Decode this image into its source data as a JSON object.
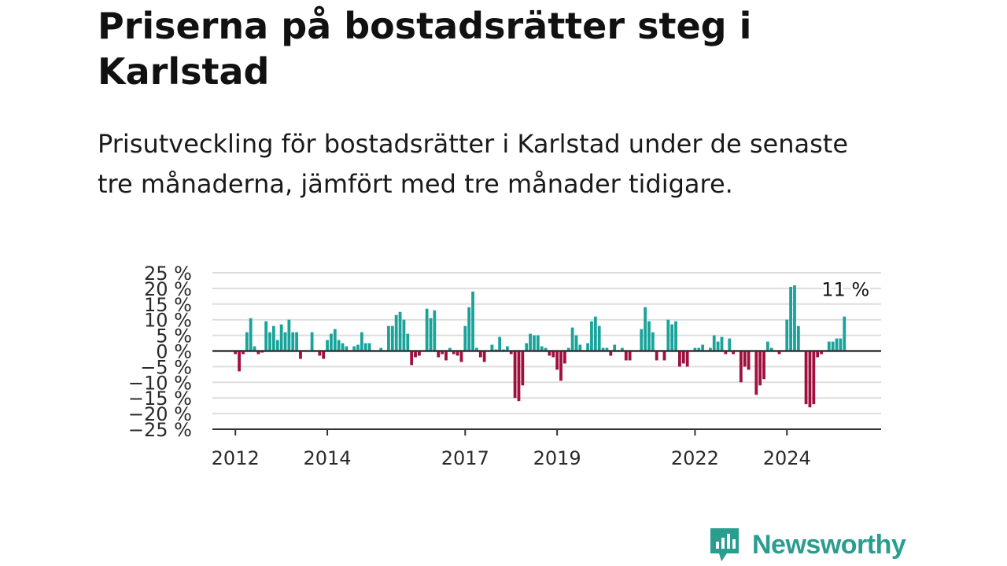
{
  "title": "Priserna på bostadsrätter steg i Karlstad",
  "subtitle": "Prisutveckling för bostadsrätter i Karlstad under de senaste tre månaderna, jämfört med tre månader tidigare.",
  "brand": {
    "name": "Newsworthy",
    "icon": "newsworthy-logo-icon"
  },
  "colors": {
    "positive": "#1aa39a",
    "negative": "#a0103f",
    "grid": "#dddddd",
    "axis": "#333333",
    "brand": "#2a9d8f"
  },
  "chart_data": {
    "type": "bar",
    "title": "",
    "xlabel": "",
    "ylabel": "",
    "ylim": [
      -25,
      25
    ],
    "yticks": [
      25,
      20,
      15,
      10,
      5,
      0,
      -5,
      -10,
      -15,
      -20,
      -25
    ],
    "ytick_labels": [
      "25 %",
      "20 %",
      "15 %",
      "10 %",
      "5 %",
      "0 %",
      "−5 %",
      "−10 %",
      "−15 %",
      "−20 %",
      "−25 %"
    ],
    "xticks": [
      2012,
      2014,
      2017,
      2019,
      2022,
      2024
    ],
    "xlim": [
      2011.5,
      2026.05
    ],
    "grid": true,
    "last_value_label": "11 %",
    "x_start": "2012-01",
    "x_step": "monthly",
    "values": [
      -1,
      -6.5,
      -1,
      6,
      10.5,
      1.5,
      -1,
      -0.5,
      9.5,
      6,
      8,
      3.5,
      8.5,
      6,
      10,
      6,
      6,
      -2.5,
      0,
      0,
      6,
      0,
      -1.5,
      -2.5,
      3.5,
      5.5,
      7,
      3.5,
      2.5,
      1.5,
      0,
      1.5,
      2,
      6,
      2.5,
      2.5,
      0,
      0,
      1,
      0,
      8,
      8,
      11.5,
      12.5,
      10,
      5.5,
      -4.5,
      -2,
      -1.5,
      0,
      13.5,
      10.5,
      13,
      -2,
      -1,
      -3,
      1,
      -1,
      -1.5,
      -3.5,
      8,
      14,
      19,
      1,
      -2,
      -3.5,
      0,
      2,
      0.5,
      4.5,
      0.5,
      1.5,
      -1,
      -15,
      -16,
      -11,
      2.5,
      5.5,
      5,
      5,
      1.5,
      1,
      -1.5,
      -2,
      -6,
      -9.5,
      -4,
      1,
      7.5,
      5,
      2,
      0,
      2.5,
      9.5,
      11,
      8,
      1,
      1,
      -1.5,
      2,
      0,
      1,
      -3,
      -3,
      0,
      0,
      7,
      14,
      9.5,
      6,
      -3,
      0,
      -3,
      10,
      8.5,
      9.5,
      -5,
      -4,
      -5,
      0,
      1,
      1,
      2,
      0,
      1,
      5,
      3,
      4.5,
      -1,
      4,
      -1,
      0,
      -10,
      -5,
      -6,
      0,
      -14,
      -11,
      -9,
      3,
      1,
      0,
      -1,
      0,
      10,
      20.5,
      21,
      8,
      0,
      -17,
      -18,
      -17,
      -2,
      -1,
      0,
      3,
      3,
      4,
      4,
      11
    ]
  }
}
